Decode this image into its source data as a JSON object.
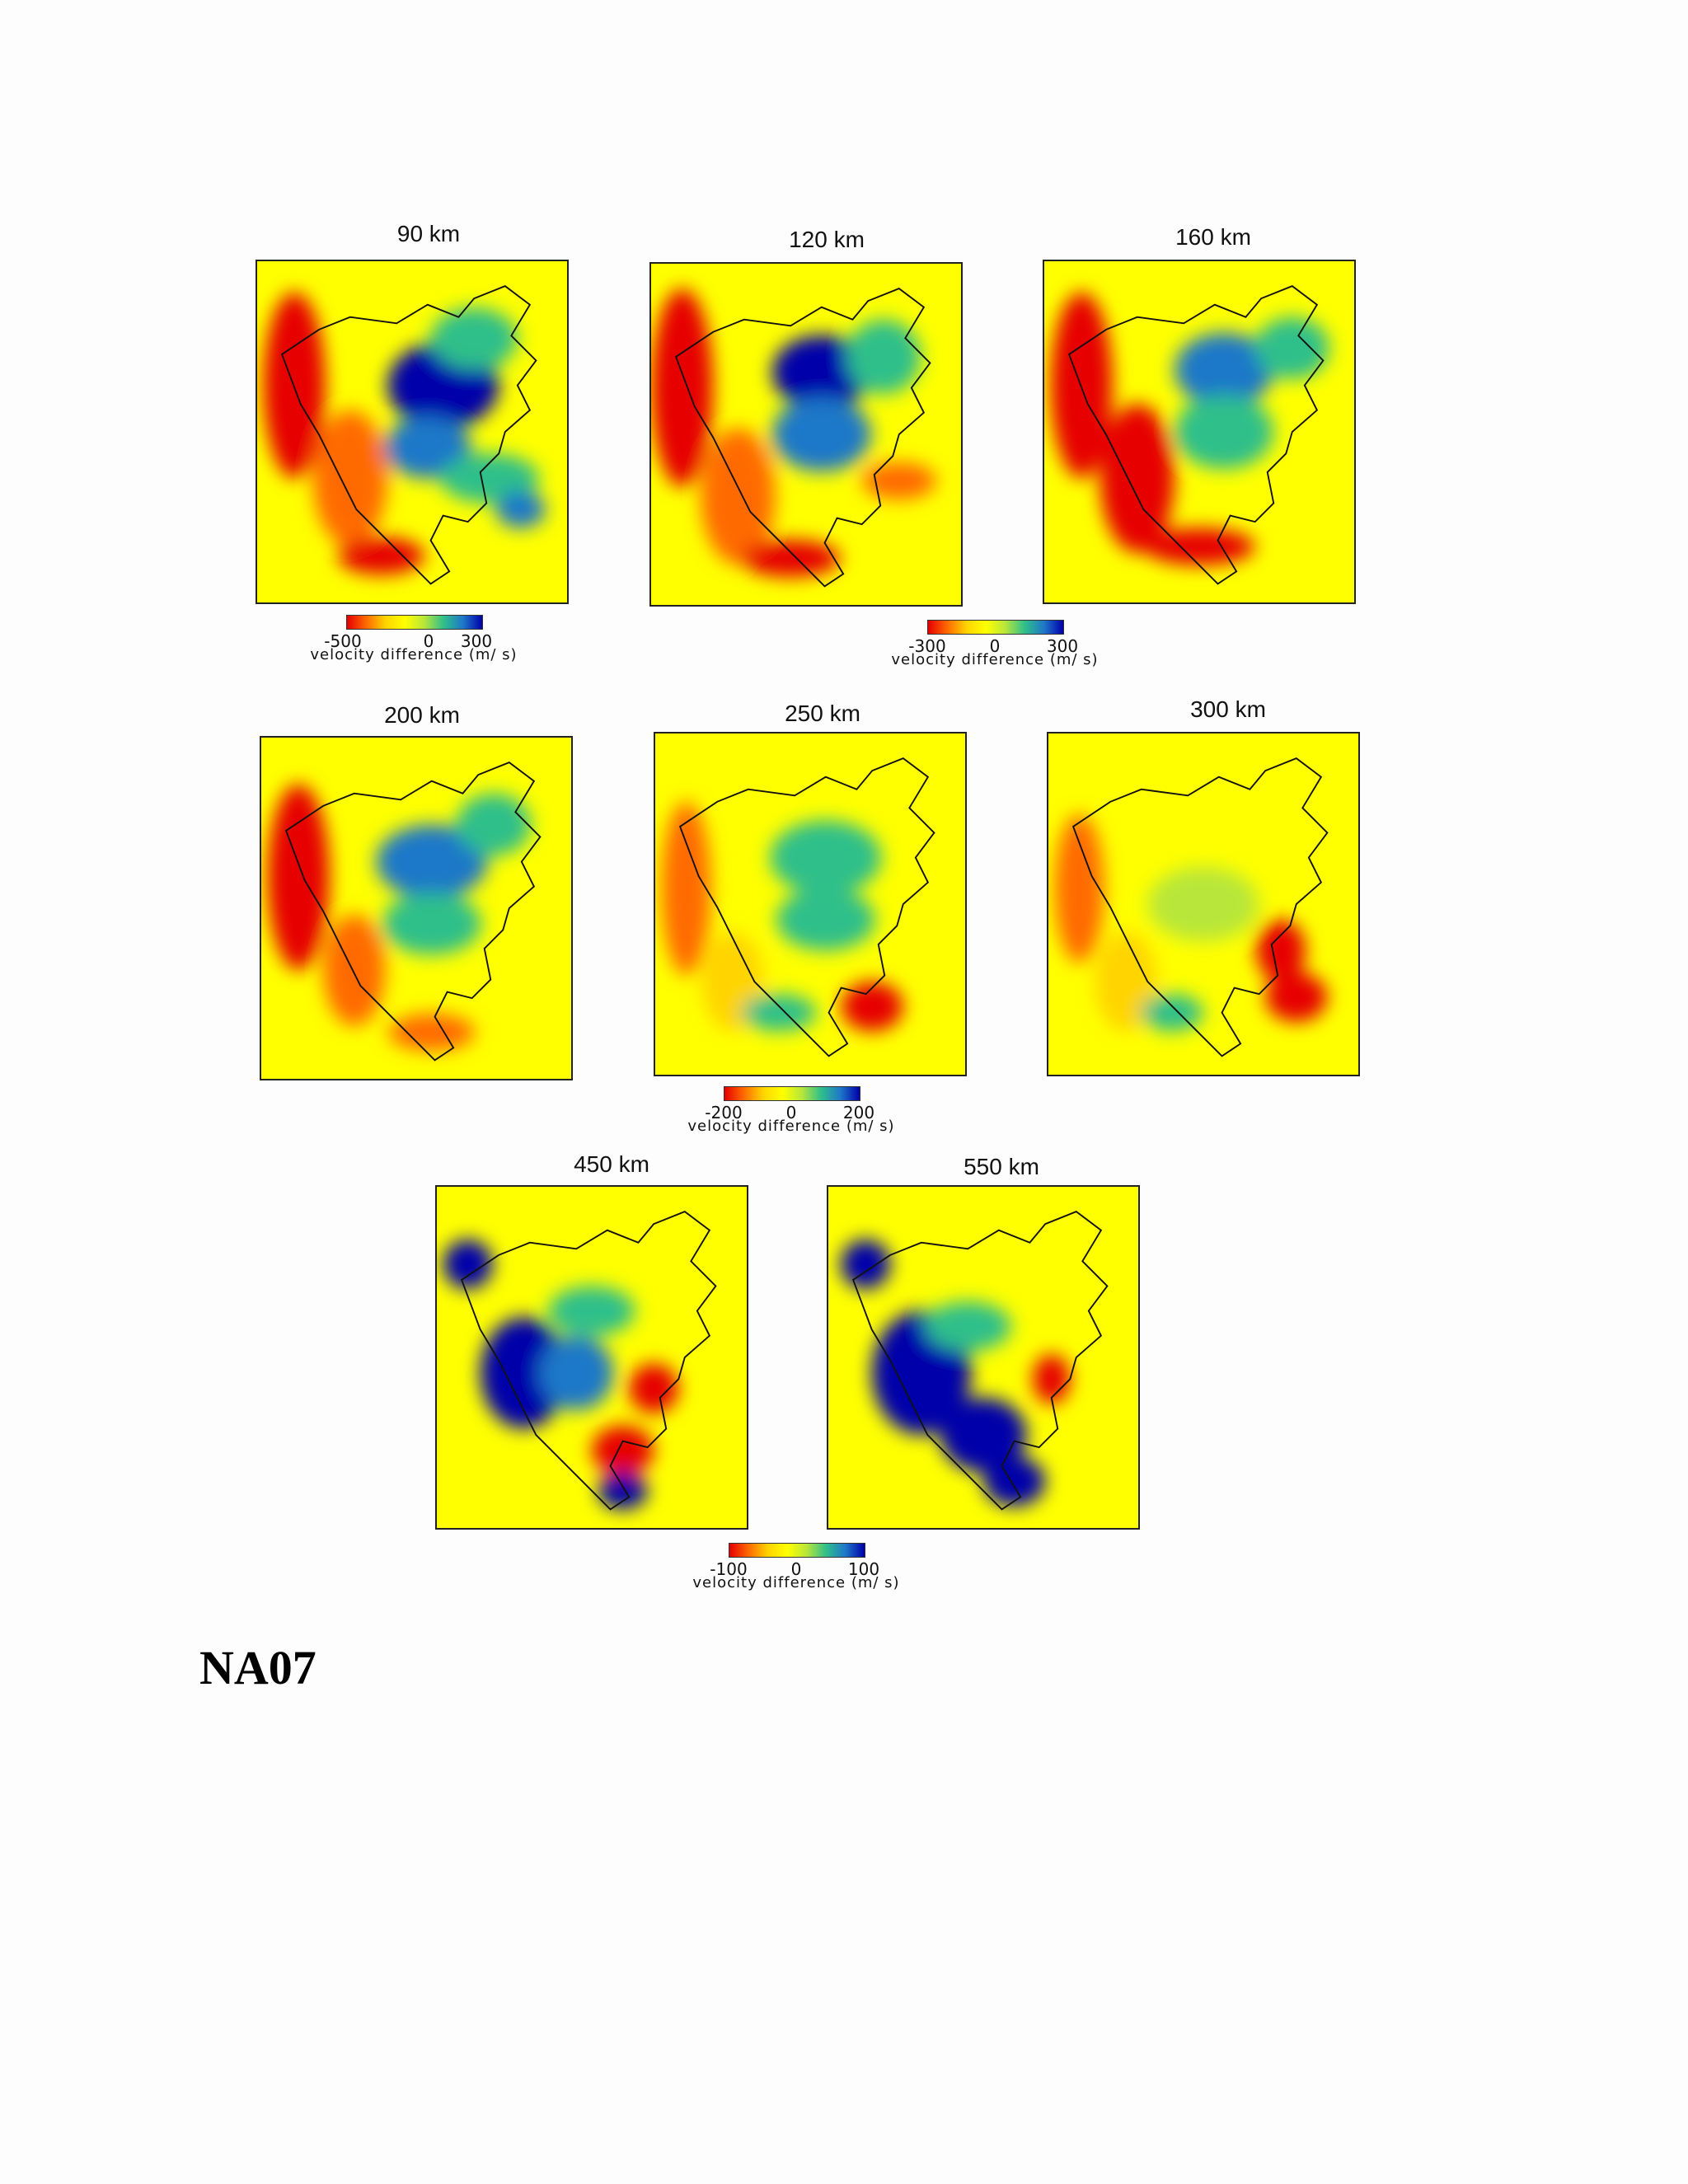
{
  "panels": [
    {
      "title": "90 km"
    },
    {
      "title": "120 km"
    },
    {
      "title": "160 km"
    },
    {
      "title": "200 km"
    },
    {
      "title": "250 km"
    },
    {
      "title": "300 km"
    },
    {
      "title": "450 km"
    },
    {
      "title": "550 km"
    }
  ],
  "colorbars": [
    {
      "min": "-500",
      "mid": "0",
      "max": "300",
      "label": "velocity difference (m/ s)"
    },
    {
      "min": "-300",
      "mid": "0",
      "max": "300",
      "label": "velocity difference (m/ s)"
    },
    {
      "min": "-200",
      "mid": "0",
      "max": "200",
      "label": "velocity difference (m/ s)"
    },
    {
      "min": "-100",
      "mid": "0",
      "max": "100",
      "label": "velocity difference (m/ s)"
    }
  ],
  "colormap": [
    "#e60000",
    "#ff6a00",
    "#ffd400",
    "#ffff00",
    "#b8e63a",
    "#2fbf8a",
    "#1f78c8",
    "#0000aa"
  ],
  "heading": "NA07"
}
